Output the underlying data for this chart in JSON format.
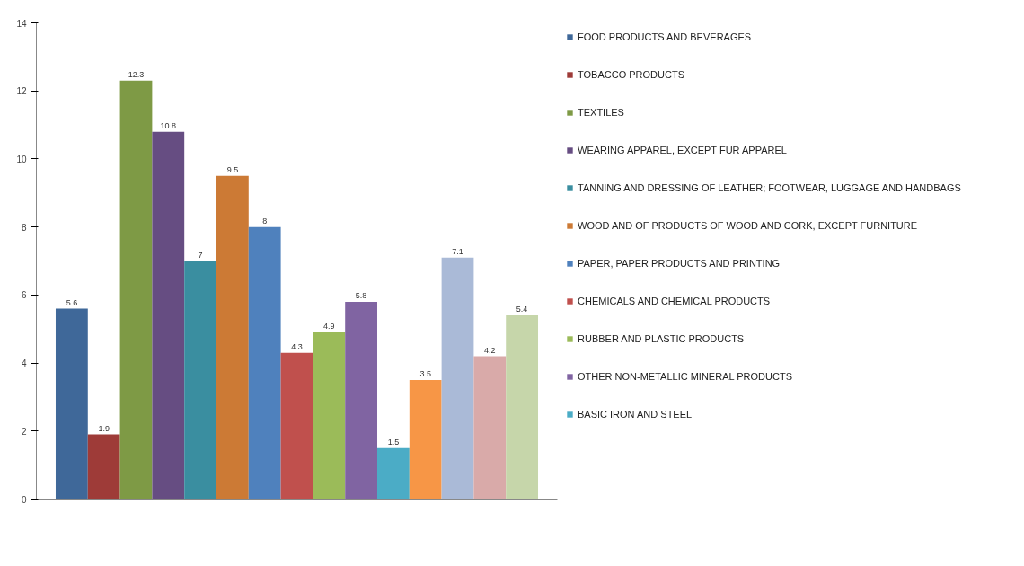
{
  "chart_data": {
    "type": "bar",
    "categories": [
      null
    ],
    "series": [
      {
        "name": "FOOD PRODUCTS AND BEVERAGES",
        "color": "#3f6899",
        "values": [
          5.6
        ]
      },
      {
        "name": "TOBACCO PRODUCTS",
        "color": "#9e3b38",
        "values": [
          1.9
        ]
      },
      {
        "name": "TEXTILES",
        "color": "#7e9a45",
        "values": [
          12.3
        ]
      },
      {
        "name": "WEARING APPAREL, EXCEPT FUR APPAREL",
        "color": "#664d82",
        "values": [
          10.8
        ]
      },
      {
        "name": "TANNING AND DRESSING OF LEATHER; FOOTWEAR, LUGGAGE AND HANDBAGS",
        "color": "#3a8ea0",
        "values": [
          7
        ]
      },
      {
        "name": "WOOD AND OF PRODUCTS OF WOOD AND CORK, EXCEPT FURNITURE",
        "color": "#cc7a35",
        "values": [
          9.5
        ]
      },
      {
        "name": "PAPER, PAPER PRODUCTS AND PRINTING",
        "color": "#4f81bd",
        "values": [
          8
        ]
      },
      {
        "name": "CHEMICALS AND CHEMICAL PRODUCTS",
        "color": "#c0504d",
        "values": [
          4.3
        ]
      },
      {
        "name": "RUBBER AND PLASTIC PRODUCTS",
        "color": "#9bbb59",
        "values": [
          4.9
        ]
      },
      {
        "name": "OTHER NON-METALLIC MINERAL PRODUCTS",
        "color": "#8064a2",
        "values": [
          5.8
        ]
      },
      {
        "name": "BASIC IRON AND STEEL",
        "color": "#4bacc6",
        "values": [
          1.5
        ]
      },
      {
        "color": "#f79646",
        "values": [
          3.5
        ]
      },
      {
        "color": "#aabad7",
        "values": [
          7.1
        ]
      },
      {
        "color": "#d9aaa9",
        "values": [
          4.2
        ]
      },
      {
        "color": "#c6d6aa",
        "values": [
          5.4
        ]
      }
    ],
    "ylim": [
      0,
      14
    ],
    "yticks": [
      0,
      2,
      4,
      6,
      8,
      10,
      12,
      14
    ],
    "grid": false,
    "legend": "right",
    "data_labels": true
  }
}
